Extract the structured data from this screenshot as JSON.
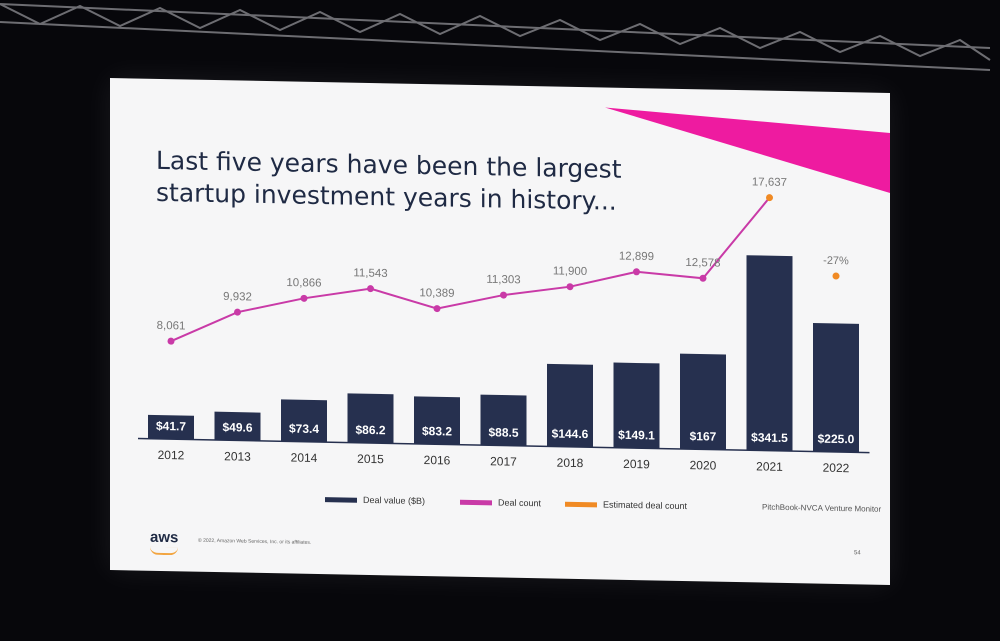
{
  "slide": {
    "title_line1": "Last five years have been the largest",
    "title_line2": "startup investment years in history...",
    "source": "PitchBook-NVCA Venture Monitor",
    "logo": "aws",
    "copyright": "© 2022, Amazon Web Services, Inc. or its affiliates.",
    "page_number": "54"
  },
  "colors": {
    "bar": "#26304f",
    "line": "#c93aa7",
    "estimate": "#f08a24",
    "accent": "#ee1ba0",
    "text_navy": "#1f2a44"
  },
  "legend": [
    {
      "label": "Deal value ($B)",
      "color": "#26304f"
    },
    {
      "label": "Deal count",
      "color": "#c93aa7"
    },
    {
      "label": "Estimated deal count",
      "color": "#f08a24"
    }
  ],
  "chart_data": {
    "type": "bar",
    "categories": [
      "2012",
      "2013",
      "2014",
      "2015",
      "2016",
      "2017",
      "2018",
      "2019",
      "2020",
      "2021",
      "2022"
    ],
    "series": [
      {
        "name": "Deal value ($B)",
        "type": "bar",
        "values": [
          41.7,
          49.6,
          73.4,
          86.2,
          83.2,
          88.5,
          144.6,
          149.1,
          167,
          341.5,
          225.0
        ],
        "labels": [
          "$41.7",
          "$49.6",
          "$73.4",
          "$86.2",
          "$83.2",
          "$88.5",
          "$144.6",
          "$149.1",
          "$167",
          "$341.5",
          "$225.0"
        ]
      },
      {
        "name": "Deal count",
        "type": "line",
        "values": [
          8061,
          9932,
          10866,
          11543,
          10389,
          11303,
          11900,
          12899,
          12578,
          17637,
          null
        ],
        "labels": [
          "8,061",
          "9,932",
          "10,866",
          "11,543",
          "10,389",
          "11,303",
          "11,900",
          "12,899",
          "12,578",
          "17,637",
          ""
        ]
      },
      {
        "name": "Estimated deal count",
        "type": "scatter",
        "values": [
          null,
          null,
          null,
          null,
          null,
          null,
          null,
          null,
          null,
          17637,
          12875
        ],
        "labels": [
          "",
          "",
          "",
          "",
          "",
          "",
          "",
          "",
          "",
          "",
          "-27%"
        ]
      }
    ]
  }
}
